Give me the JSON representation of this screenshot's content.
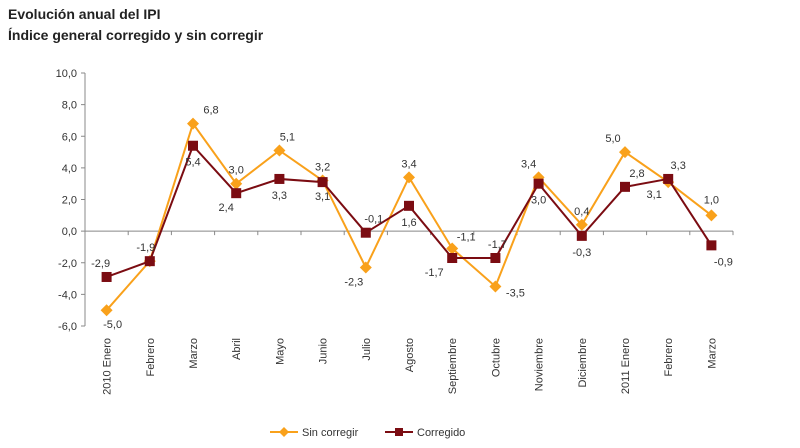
{
  "chart_data": {
    "type": "line",
    "title": "Evolución anual del IPI",
    "subtitle": "Índice general corregido y sin corregir",
    "categories": [
      "2010 Enero",
      "Febrero",
      "Marzo",
      "Abril",
      "Mayo",
      "Junio",
      "Julio",
      "Agosto",
      "Septiembre",
      "Octubre",
      "Noviembre",
      "Diciembre",
      "2011 Enero",
      "Febrero",
      "Marzo"
    ],
    "ylim": [
      -6,
      10
    ],
    "yticks": [
      "10,0",
      "8,0",
      "6,0",
      "4,0",
      "2,0",
      "0,0",
      "-2,0",
      "-4,0",
      "-6,0"
    ],
    "grid": false,
    "legend": "bottom",
    "series": [
      {
        "name": "Sin corregir",
        "color": "#f9a11b",
        "marker": "diamond",
        "values": [
          -5.0,
          -1.9,
          6.8,
          3.0,
          5.1,
          3.2,
          -2.3,
          3.4,
          -1.1,
          -3.5,
          3.4,
          0.4,
          5.0,
          3.1,
          1.0
        ],
        "labels": [
          "-5,0",
          "",
          "6,8",
          "3,0",
          "5,1",
          "3,2",
          "-2,3",
          "3,4",
          "-1,1",
          "-3,5",
          "3,4",
          "0,4",
          "5,0",
          "3,1",
          "1,0"
        ]
      },
      {
        "name": "Corregido",
        "color": "#7b0c12",
        "marker": "square",
        "values": [
          -2.9,
          -1.9,
          5.4,
          2.4,
          3.3,
          3.1,
          -0.1,
          1.6,
          -1.7,
          -1.7,
          3.0,
          -0.3,
          2.8,
          3.3,
          -0.9
        ],
        "labels": [
          "-2,9",
          "-1,9",
          "5,4",
          "2,4",
          "3,3",
          "3,1",
          "-0,1",
          "1,6",
          "-1,7",
          "-1,7",
          "3,0",
          "-0,3",
          "2,8",
          "3,3",
          "-0,9"
        ]
      }
    ]
  }
}
